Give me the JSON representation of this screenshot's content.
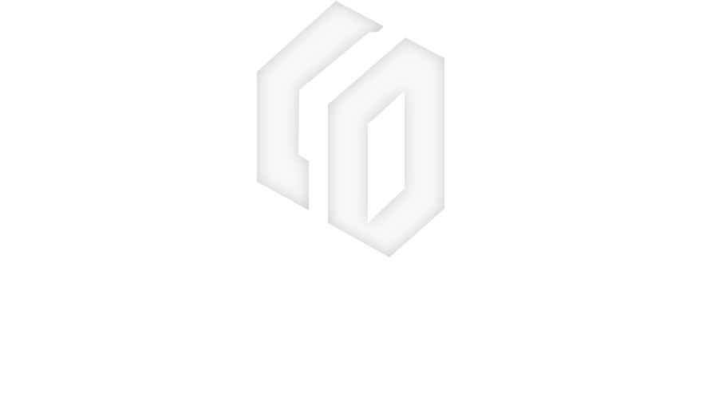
{
  "background_color": "#ffffff",
  "logo": {
    "name": "CO",
    "icon": "co-monogram-logo-icon",
    "color_edge": "#c7c7c7",
    "color_center": "#f7f7f7"
  }
}
